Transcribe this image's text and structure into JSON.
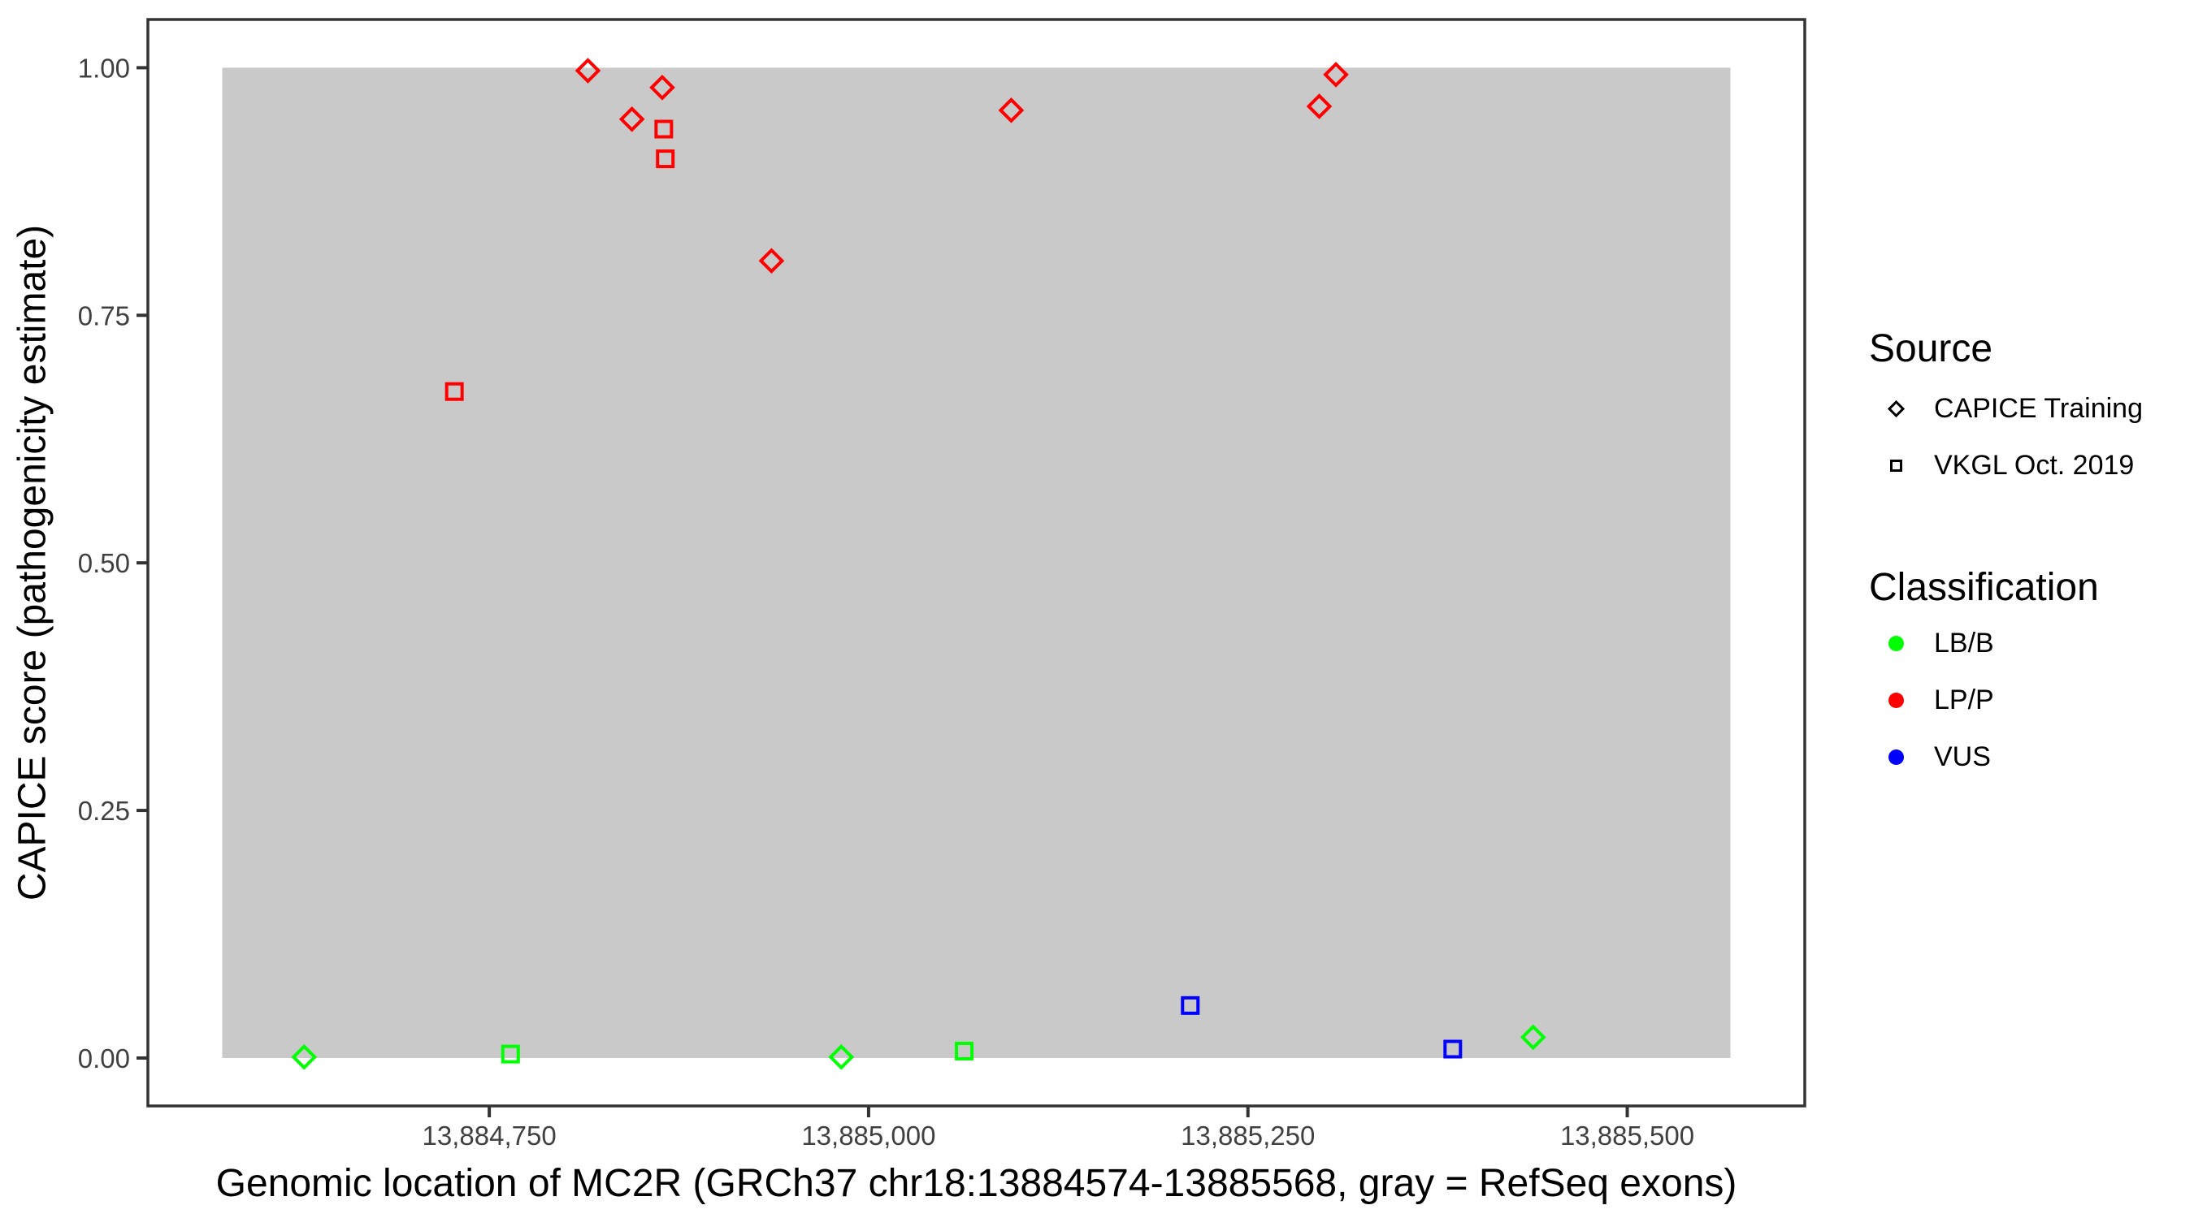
{
  "figure": {
    "x_axis_title": "Genomic location of MC2R (GRCh37 chr18:13884574-13885568, gray = RefSeq exons)",
    "y_axis_title": "CAPICE score (pathogenicity estimate)"
  },
  "axes": {
    "x": {
      "domain": [
        13884525,
        13885617
      ],
      "ticks": [
        {
          "label": "13,884,750",
          "value": 13884750
        },
        {
          "label": "13,885,000",
          "value": 13885000
        },
        {
          "label": "13,885,250",
          "value": 13885250
        },
        {
          "label": "13,885,500",
          "value": 13885500
        }
      ]
    },
    "y": {
      "domain": [
        -0.0484,
        1.0487
      ],
      "ticks": [
        {
          "label": "1.00",
          "value": 1.0
        },
        {
          "label": "0.75",
          "value": 0.75
        },
        {
          "label": "0.50",
          "value": 0.5
        },
        {
          "label": "0.25",
          "value": 0.25
        },
        {
          "label": "0.00",
          "value": 0.0
        }
      ]
    }
  },
  "exon_region": {
    "x_start": 13884574,
    "x_end": 13885568,
    "y_min": 0,
    "y_max": 1,
    "fill": "#C9C9C9"
  },
  "legend": {
    "source": {
      "title": "Source",
      "items": [
        {
          "label": "CAPICE Training",
          "marker": "open-diamond"
        },
        {
          "label": "VKGL Oct. 2019",
          "marker": "open-square"
        }
      ]
    },
    "classification": {
      "title": "Classification",
      "items": [
        {
          "label": "LB/B",
          "color": "#00FF00"
        },
        {
          "label": "LP/P",
          "color": "#FF0000"
        },
        {
          "label": "VUS",
          "color": "#0000FF"
        }
      ]
    }
  },
  "chart_data": {
    "type": "scatter",
    "title": "",
    "xlabel": "Genomic location of MC2R (GRCh37 chr18:13884574-13885568, gray = RefSeq exons)",
    "ylabel": "CAPICE score (pathogenicity estimate)",
    "xlim": [
      13884525,
      13885617
    ],
    "ylim": [
      -0.05,
      1.05
    ],
    "grid": false,
    "legend_position": "right",
    "exon_rect": {
      "x_start": 13884574,
      "x_end": 13885568,
      "y_min": 0,
      "y_max": 1
    },
    "series": [
      {
        "name": "CAPICE Training / LP/P",
        "source": "CAPICE Training",
        "classification": "LP/P",
        "marker": "open-diamond",
        "color": "#FF0000",
        "points": [
          [
            13884815,
            0.997
          ],
          [
            13884844,
            0.948
          ],
          [
            13884864,
            0.98
          ],
          [
            13884936,
            0.805
          ],
          [
            13885094,
            0.957
          ],
          [
            13885297,
            0.961
          ],
          [
            13885308,
            0.993
          ]
        ]
      },
      {
        "name": "VKGL Oct. 2019 / LP/P",
        "source": "VKGL Oct. 2019",
        "classification": "LP/P",
        "marker": "open-square",
        "color": "#FF0000",
        "points": [
          [
            13884727,
            0.673
          ],
          [
            13884865,
            0.938
          ],
          [
            13884866,
            0.908
          ]
        ]
      },
      {
        "name": "CAPICE Training / LB/B",
        "source": "CAPICE Training",
        "classification": "LB/B",
        "marker": "open-diamond",
        "color": "#00FF00",
        "points": [
          [
            13884628,
            0.001
          ],
          [
            13884982,
            0.001
          ],
          [
            13885438,
            0.021
          ]
        ]
      },
      {
        "name": "VKGL Oct. 2019 / LB/B",
        "source": "VKGL Oct. 2019",
        "classification": "LB/B",
        "marker": "open-square",
        "color": "#00FF00",
        "points": [
          [
            13884764,
            0.004
          ],
          [
            13885063,
            0.007
          ]
        ]
      },
      {
        "name": "VKGL Oct. 2019 / VUS",
        "source": "VKGL Oct. 2019",
        "classification": "VUS",
        "marker": "open-square",
        "color": "#0000FF",
        "points": [
          [
            13885212,
            0.053
          ],
          [
            13885385,
            0.009
          ]
        ]
      }
    ]
  },
  "style": {
    "panel_border_color": "#333333",
    "tick_color": "#333333",
    "tick_label_color": "#404040",
    "background": "#FFFFFF"
  }
}
